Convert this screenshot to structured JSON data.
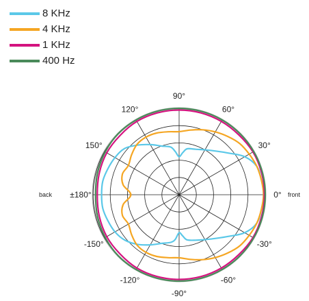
{
  "chart_data": {
    "type": "polar",
    "angle_unit": "degrees",
    "angle_ticks": [
      "0°",
      "30°",
      "60°",
      "90°",
      "120°",
      "150°",
      "±180°",
      "-150°",
      "-120°",
      "-90°",
      "-60°",
      "-30°"
    ],
    "side_labels": {
      "front": "front",
      "back": "back"
    },
    "rings": 5,
    "r_max": 1.0,
    "legend_position": "top-left",
    "series": [
      {
        "name": "8 KHz",
        "color": "#5bc8e8",
        "points": [
          [
            0,
            0.98
          ],
          [
            10,
            0.97
          ],
          [
            20,
            0.96
          ],
          [
            30,
            0.88
          ],
          [
            40,
            0.75
          ],
          [
            50,
            0.66
          ],
          [
            60,
            0.6
          ],
          [
            70,
            0.56
          ],
          [
            80,
            0.54
          ],
          [
            85,
            0.49
          ],
          [
            90,
            0.44
          ],
          [
            95,
            0.5
          ],
          [
            100,
            0.56
          ],
          [
            110,
            0.6
          ],
          [
            120,
            0.67
          ],
          [
            130,
            0.75
          ],
          [
            140,
            0.83
          ],
          [
            150,
            0.86
          ],
          [
            160,
            0.88
          ],
          [
            170,
            0.9
          ],
          [
            180,
            0.9
          ],
          [
            190,
            0.9
          ],
          [
            200,
            0.88
          ],
          [
            210,
            0.86
          ],
          [
            220,
            0.82
          ],
          [
            230,
            0.75
          ],
          [
            240,
            0.67
          ],
          [
            250,
            0.6
          ],
          [
            260,
            0.56
          ],
          [
            265,
            0.52
          ],
          [
            270,
            0.44
          ],
          [
            275,
            0.48
          ],
          [
            280,
            0.53
          ],
          [
            290,
            0.56
          ],
          [
            300,
            0.6
          ],
          [
            310,
            0.66
          ],
          [
            320,
            0.75
          ],
          [
            330,
            0.88
          ],
          [
            340,
            0.96
          ],
          [
            350,
            0.97
          ]
        ]
      },
      {
        "name": "4 KHz",
        "color": "#f5a623",
        "points": [
          [
            0,
            0.98
          ],
          [
            10,
            0.97
          ],
          [
            20,
            0.96
          ],
          [
            30,
            0.94
          ],
          [
            40,
            0.92
          ],
          [
            50,
            0.88
          ],
          [
            60,
            0.84
          ],
          [
            70,
            0.8
          ],
          [
            80,
            0.76
          ],
          [
            90,
            0.73
          ],
          [
            100,
            0.74
          ],
          [
            110,
            0.76
          ],
          [
            120,
            0.77
          ],
          [
            130,
            0.76
          ],
          [
            140,
            0.72
          ],
          [
            150,
            0.68
          ],
          [
            160,
            0.7
          ],
          [
            170,
            0.66
          ],
          [
            180,
            0.56
          ],
          [
            190,
            0.66
          ],
          [
            200,
            0.7
          ],
          [
            210,
            0.68
          ],
          [
            220,
            0.72
          ],
          [
            230,
            0.76
          ],
          [
            240,
            0.77
          ],
          [
            250,
            0.76
          ],
          [
            260,
            0.74
          ],
          [
            270,
            0.73
          ],
          [
            280,
            0.76
          ],
          [
            290,
            0.8
          ],
          [
            300,
            0.84
          ],
          [
            310,
            0.88
          ],
          [
            320,
            0.92
          ],
          [
            330,
            0.94
          ],
          [
            340,
            0.96
          ],
          [
            350,
            0.97
          ]
        ]
      },
      {
        "name": "1 KHz",
        "color": "#d4137f",
        "points": [
          [
            0,
            0.99
          ],
          [
            15,
            0.99
          ],
          [
            30,
            0.99
          ],
          [
            45,
            0.98
          ],
          [
            60,
            0.98
          ],
          [
            75,
            0.98
          ],
          [
            90,
            0.98
          ],
          [
            105,
            0.98
          ],
          [
            120,
            0.98
          ],
          [
            135,
            0.97
          ],
          [
            150,
            0.97
          ],
          [
            165,
            0.96
          ],
          [
            180,
            0.95
          ],
          [
            195,
            0.96
          ],
          [
            210,
            0.97
          ],
          [
            225,
            0.97
          ],
          [
            240,
            0.98
          ],
          [
            255,
            0.98
          ],
          [
            270,
            0.98
          ],
          [
            285,
            0.98
          ],
          [
            300,
            0.98
          ],
          [
            315,
            0.98
          ],
          [
            330,
            0.99
          ],
          [
            345,
            0.99
          ]
        ]
      },
      {
        "name": "400 Hz",
        "color": "#4a8a5a",
        "points": [
          [
            0,
            1.0
          ],
          [
            15,
            1.0
          ],
          [
            30,
            1.0
          ],
          [
            45,
            1.0
          ],
          [
            60,
            1.0
          ],
          [
            75,
            1.0
          ],
          [
            90,
            1.0
          ],
          [
            105,
            1.0
          ],
          [
            120,
            1.0
          ],
          [
            135,
            1.0
          ],
          [
            150,
            0.99
          ],
          [
            165,
            0.98
          ],
          [
            180,
            0.97
          ],
          [
            195,
            0.98
          ],
          [
            210,
            0.99
          ],
          [
            225,
            1.0
          ],
          [
            240,
            1.0
          ],
          [
            255,
            1.0
          ],
          [
            270,
            1.0
          ],
          [
            285,
            1.0
          ],
          [
            300,
            1.0
          ],
          [
            315,
            1.0
          ],
          [
            330,
            1.0
          ],
          [
            345,
            1.0
          ]
        ]
      }
    ]
  }
}
